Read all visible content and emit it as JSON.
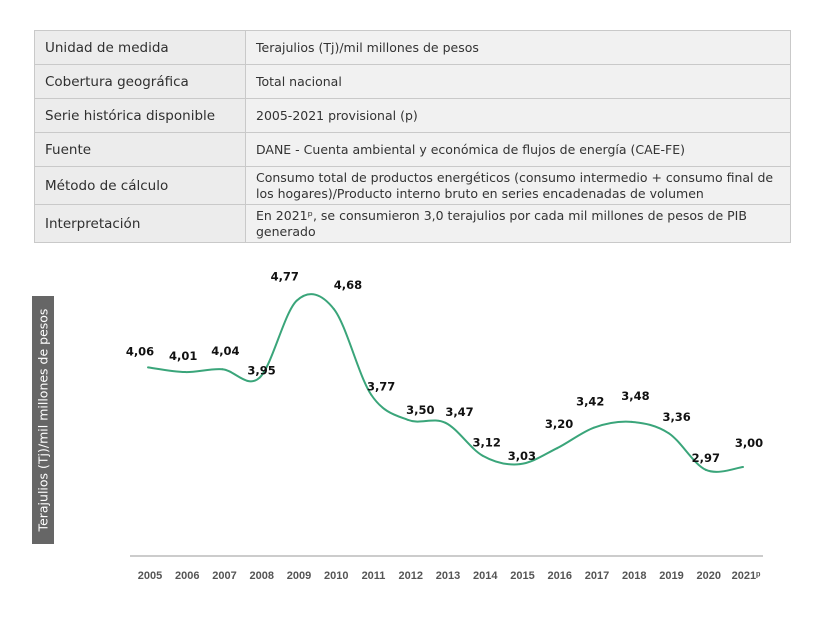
{
  "table": {
    "rows": [
      {
        "label": "Unidad de medida",
        "value": "Terajulios (Tj)/mil millones de pesos"
      },
      {
        "label": "Cobertura geográfica",
        "value": "Total nacional"
      },
      {
        "label": "Serie histórica disponible",
        "value": "2005-2021 provisional (p)"
      },
      {
        "label": "Fuente",
        "value": "DANE - Cuenta ambiental y económica de flujos de energía (CAE-FE)"
      },
      {
        "label": "Método de cálculo",
        "value": "Consumo total de productos energéticos (consumo intermedio + consumo final de los hogares)/Producto interno bruto en series encadenadas de volumen"
      },
      {
        "label": "Interpretación",
        "value": "En 2021ᵖ, se consumieron 3,0 terajulios por cada mil millones de pesos de PIB generado"
      }
    ]
  },
  "chart_data": {
    "type": "line",
    "title": "",
    "xlabel": "",
    "ylabel": "Terajulios (Tj)/mil millones de pesos",
    "categories": [
      "2005",
      "2006",
      "2007",
      "2008",
      "2009",
      "2010",
      "2011",
      "2012",
      "2013",
      "2014",
      "2015",
      "2016",
      "2017",
      "2018",
      "2019",
      "2020",
      "2021ᵖ"
    ],
    "values": [
      4.06,
      4.01,
      4.04,
      3.95,
      4.77,
      4.68,
      3.77,
      3.5,
      3.47,
      3.12,
      3.03,
      3.2,
      3.42,
      3.48,
      3.36,
      2.97,
      3.0
    ],
    "value_labels": [
      "4,06",
      "4,01",
      "4,04",
      "3,95",
      "4,77",
      "4,68",
      "3,77",
      "3,50",
      "3,47",
      "3,12",
      "3,03",
      "3,20",
      "3,42",
      "3,48",
      "3,36",
      "2,97",
      "3,00"
    ],
    "ylim": [
      2.5,
      5.0
    ],
    "grid": false,
    "line_color": "#3aa57a"
  }
}
